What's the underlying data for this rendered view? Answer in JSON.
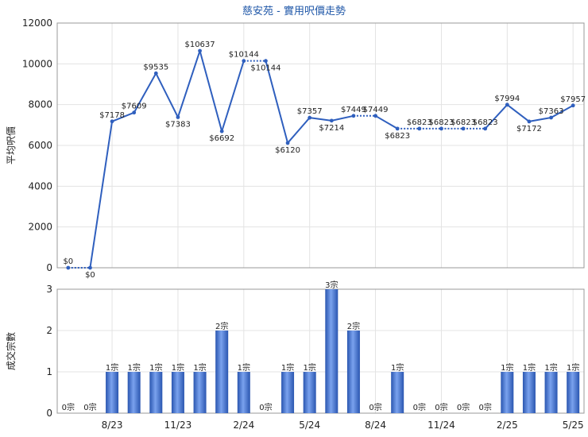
{
  "chart_data": [
    {
      "type": "line",
      "title": "慈安苑 - 實用呎價走勢",
      "ylabel": "平均呎價",
      "ylim": [
        0,
        12000
      ],
      "yticks": [
        "0",
        "2000",
        "4000",
        "6000",
        "8000",
        "10000",
        "12000"
      ],
      "line_color": "#2f5fbe",
      "grid": true,
      "series": [
        {
          "values": [
            0,
            0,
            7178,
            7609,
            9535,
            7383,
            10637,
            6692,
            10144,
            10144,
            6120,
            7357,
            7214,
            7449,
            7449,
            6823,
            6823,
            6823,
            6823,
            6823,
            7994,
            7172,
            7363,
            7957
          ],
          "labels": [
            "$0",
            "$0",
            "$7178",
            "$7609",
            "$9535",
            "$7383",
            "$10637",
            "$6692",
            "$10144",
            "$10144",
            "$6120",
            "$7357",
            "$7214",
            "$7449",
            "$7449",
            "$6823",
            "$6823",
            "$6823",
            "$6823",
            "$6823",
            "$7994",
            "$7172",
            "$7363",
            "$7957"
          ],
          "estimated": [
            false,
            true,
            false,
            false,
            false,
            false,
            false,
            false,
            false,
            true,
            false,
            false,
            false,
            false,
            true,
            false,
            true,
            true,
            true,
            true,
            false,
            false,
            false,
            false
          ]
        }
      ]
    },
    {
      "type": "bar",
      "ylabel": "成交宗數",
      "ylim": [
        0,
        3
      ],
      "yticks": [
        "0",
        "1",
        "2",
        "3"
      ],
      "bar_color": "#3b6fd0",
      "categories": [
        "",
        "",
        "8/23",
        "",
        "",
        "11/23",
        "",
        "",
        "2/24",
        "",
        "",
        "5/24",
        "",
        "",
        "8/24",
        "",
        "",
        "11/24",
        "",
        "",
        "2/25",
        "",
        "",
        "5/25"
      ],
      "x_tick_labels": [
        "8/23",
        "11/23",
        "2/24",
        "5/24",
        "8/24",
        "11/24",
        "2/25",
        "5/25"
      ],
      "values": [
        0,
        0,
        1,
        1,
        1,
        1,
        1,
        2,
        1,
        0,
        1,
        1,
        3,
        2,
        0,
        1,
        0,
        0,
        0,
        0,
        1,
        1,
        1,
        1
      ],
      "labels": [
        "0宗",
        "0宗",
        "1宗",
        "1宗",
        "1宗",
        "1宗",
        "1宗",
        "2宗",
        "1宗",
        "0宗",
        "1宗",
        "1宗",
        "3宗",
        "2宗",
        "0宗",
        "1宗",
        "0宗",
        "0宗",
        "0宗",
        "0宗",
        "1宗",
        "1宗",
        "1宗",
        "1宗"
      ]
    }
  ]
}
